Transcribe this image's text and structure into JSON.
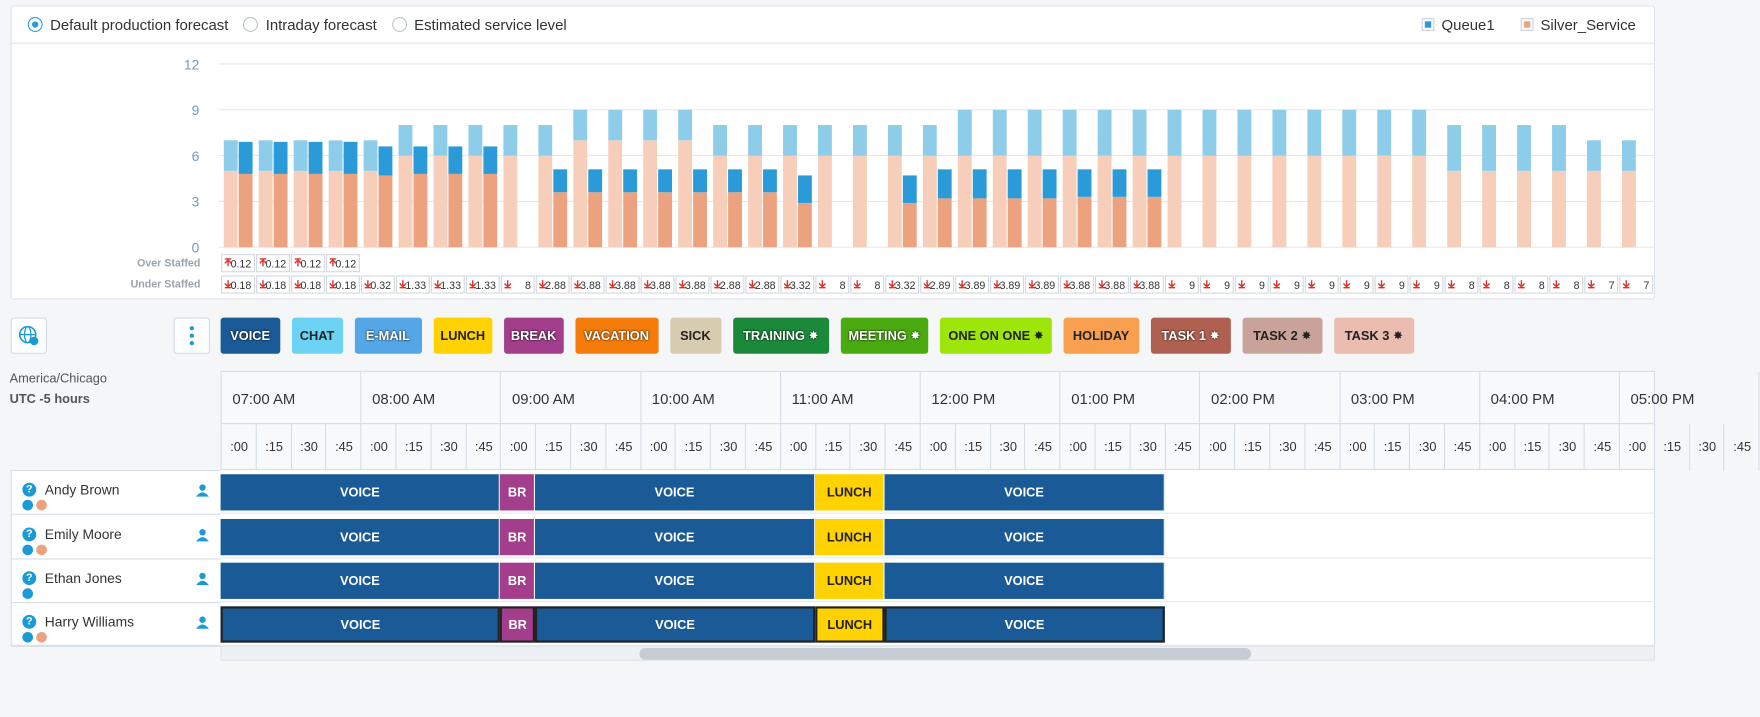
{
  "toolbar": {
    "options": [
      "Default production forecast",
      "Intraday forecast",
      "Estimated service level"
    ],
    "selected": 0
  },
  "chart_data": {
    "type": "bar",
    "stacked": true,
    "ylim": [
      0,
      12
    ],
    "yticks": [
      0,
      3,
      6,
      9,
      12
    ],
    "grid": true,
    "legend": "top-right",
    "series": [
      {
        "name": "Silver_Service",
        "color": "#eca27f",
        "forecast_color": "#f6ceb9",
        "forecast": [
          5,
          5,
          5,
          5,
          5,
          6,
          6,
          6,
          6,
          6,
          7,
          7,
          7,
          7,
          6,
          6,
          6,
          6,
          6,
          6,
          6,
          6,
          6,
          6,
          6,
          6,
          6,
          6,
          6,
          6,
          6,
          6,
          6,
          6,
          6,
          5,
          5,
          5,
          5,
          5,
          5
        ],
        "scheduled": [
          4.8,
          4.8,
          4.8,
          4.8,
          4.7,
          4.8,
          4.8,
          4.8,
          null,
          3.6,
          3.6,
          3.6,
          3.6,
          3.6,
          3.6,
          3.6,
          2.9,
          null,
          null,
          2.9,
          3.2,
          3.2,
          3.2,
          3.2,
          3.3,
          3.3,
          3.3,
          null,
          null,
          null,
          null,
          null,
          null,
          null,
          null,
          null,
          null,
          null,
          null,
          null,
          null
        ]
      },
      {
        "name": "Queue1",
        "color": "#2a9bd8",
        "forecast_color": "#8ecdea",
        "forecast": [
          2,
          2,
          2,
          2,
          2,
          2,
          2,
          2,
          2,
          2,
          2,
          2,
          2,
          2,
          2,
          2,
          2,
          2,
          2,
          2,
          2,
          3,
          3,
          3,
          3,
          3,
          3,
          3,
          3,
          3,
          3,
          3,
          3,
          3,
          3,
          3,
          3,
          3,
          3,
          2,
          2
        ],
        "scheduled": [
          2.1,
          2.1,
          2.1,
          2.1,
          1.9,
          1.8,
          1.8,
          1.8,
          null,
          1.5,
          1.5,
          1.5,
          1.5,
          1.5,
          1.5,
          1.5,
          1.8,
          null,
          null,
          1.8,
          1.9,
          1.9,
          1.9,
          1.9,
          1.8,
          1.8,
          1.8,
          null,
          null,
          null,
          null,
          null,
          null,
          null,
          null,
          null,
          null,
          null,
          null,
          null,
          null
        ]
      }
    ],
    "over_staffed": {
      "label": "Over Staffed",
      "values": [
        0.12,
        0.12,
        0.12,
        0.12,
        null,
        null,
        null,
        null,
        null,
        null,
        null,
        null,
        null,
        null,
        null,
        null,
        null,
        null,
        null,
        null,
        null,
        null,
        null,
        null,
        null,
        null,
        null,
        null,
        null,
        null,
        null,
        null,
        null,
        null,
        null,
        null,
        null,
        null,
        null,
        null,
        null
      ]
    },
    "under_staffed": {
      "label": "Under Staffed",
      "values": [
        0.18,
        0.18,
        0.18,
        0.18,
        0.32,
        1.33,
        1.33,
        1.33,
        8,
        2.88,
        3.88,
        3.88,
        3.88,
        3.88,
        2.88,
        2.88,
        3.32,
        8,
        8,
        3.32,
        2.89,
        3.89,
        3.89,
        3.89,
        3.88,
        3.88,
        3.88,
        9,
        9,
        9,
        9,
        9,
        9,
        9,
        9,
        8,
        8,
        8,
        8,
        7,
        7
      ]
    }
  },
  "activities": [
    {
      "label": "VOICE",
      "color": "#1a5a96",
      "pinned": false
    },
    {
      "label": "CHAT",
      "color": "#6dd3f5",
      "pinned": false
    },
    {
      "label": "E-MAIL",
      "color": "#55a6e6",
      "pinned": false
    },
    {
      "label": "LUNCH",
      "color": "#ffd200",
      "pinned": false
    },
    {
      "label": "BREAK",
      "color": "#a23e8c",
      "pinned": false
    },
    {
      "label": "VACATION",
      "color": "#f57b0a",
      "pinned": false
    },
    {
      "label": "SICK",
      "color": "#d6cdb0",
      "pinned": false
    },
    {
      "label": "TRAINING",
      "color": "#1a8a3a",
      "pinned": true
    },
    {
      "label": "MEETING",
      "color": "#4aaa10",
      "pinned": true
    },
    {
      "label": "ONE ON ONE",
      "color": "#9ee60a",
      "pinned": true
    },
    {
      "label": "HOLIDAY",
      "color": "#f8a050",
      "pinned": false
    },
    {
      "label": "TASK 1",
      "color": "#b06050",
      "pinned": true
    },
    {
      "label": "TASK 2",
      "color": "#c9a39a",
      "pinned": true
    },
    {
      "label": "TASK 3",
      "color": "#ebbcb0",
      "pinned": true
    }
  ],
  "timezone": {
    "name": "America/Chicago",
    "offset": "UTC -5 hours"
  },
  "timeline": {
    "hours": [
      {
        "value": 7,
        "label": "07:00 AM"
      },
      {
        "value": 8,
        "label": "08:00 AM"
      },
      {
        "value": 9,
        "label": "09:00 AM"
      },
      {
        "value": 10,
        "label": "10:00 AM"
      },
      {
        "value": 11,
        "label": "11:00 AM"
      },
      {
        "value": 12,
        "label": "12:00 PM"
      },
      {
        "value": 13,
        "label": "01:00 PM"
      },
      {
        "value": 14,
        "label": "02:00 PM"
      },
      {
        "value": 15,
        "label": "03:00 PM"
      },
      {
        "value": 16,
        "label": "04:00 PM"
      },
      {
        "value": 17,
        "label": "05:00 PM"
      }
    ],
    "quarters": [
      ":00",
      ":15",
      ":30",
      ":45"
    ]
  },
  "agents": [
    {
      "name": "Andy Brown",
      "blocks": [
        {
          "label": "VOICE",
          "start": 7,
          "end": 9,
          "color": "#1a5a96"
        },
        {
          "label": "BR",
          "start": 9,
          "end": 9.25,
          "color": "#a23e8c"
        },
        {
          "label": "VOICE",
          "start": 9.25,
          "end": 11.25,
          "color": "#1a5a96"
        },
        {
          "label": "LUNCH",
          "start": 11.25,
          "end": 11.75,
          "color": "#ffd200"
        },
        {
          "label": "VOICE",
          "start": 11.75,
          "end": 13.75,
          "color": "#1a5a96"
        }
      ]
    },
    {
      "name": "Emily Moore",
      "blocks": [
        {
          "label": "VOICE",
          "start": 7,
          "end": 9,
          "color": "#1a5a96"
        },
        {
          "label": "BR",
          "start": 9,
          "end": 9.25,
          "color": "#a23e8c"
        },
        {
          "label": "VOICE",
          "start": 9.25,
          "end": 11.25,
          "color": "#1a5a96"
        },
        {
          "label": "LUNCH",
          "start": 11.25,
          "end": 11.75,
          "color": "#ffd200"
        },
        {
          "label": "VOICE",
          "start": 11.75,
          "end": 13.75,
          "color": "#1a5a96"
        }
      ]
    },
    {
      "name": "Ethan Jones",
      "blocks": [
        {
          "label": "VOICE",
          "start": 7,
          "end": 9,
          "color": "#1a5a96"
        },
        {
          "label": "BR",
          "start": 9,
          "end": 9.25,
          "color": "#a23e8c"
        },
        {
          "label": "VOICE",
          "start": 9.25,
          "end": 11.25,
          "color": "#1a5a96"
        },
        {
          "label": "LUNCH",
          "start": 11.25,
          "end": 11.75,
          "color": "#ffd200"
        },
        {
          "label": "VOICE",
          "start": 11.75,
          "end": 13.75,
          "color": "#1a5a96"
        }
      ]
    },
    {
      "name": "Harry Williams",
      "selected": true,
      "blocks": [
        {
          "label": "VOICE",
          "start": 7,
          "end": 9,
          "color": "#1a5a96"
        },
        {
          "label": "BR",
          "start": 9,
          "end": 9.25,
          "color": "#a23e8c"
        },
        {
          "label": "VOICE",
          "start": 9.25,
          "end": 11.25,
          "color": "#1a5a96"
        },
        {
          "label": "LUNCH",
          "start": 11.25,
          "end": 11.75,
          "color": "#ffd200"
        },
        {
          "label": "VOICE",
          "start": 11.75,
          "end": 13.75,
          "color": "#1a5a96"
        }
      ]
    }
  ]
}
